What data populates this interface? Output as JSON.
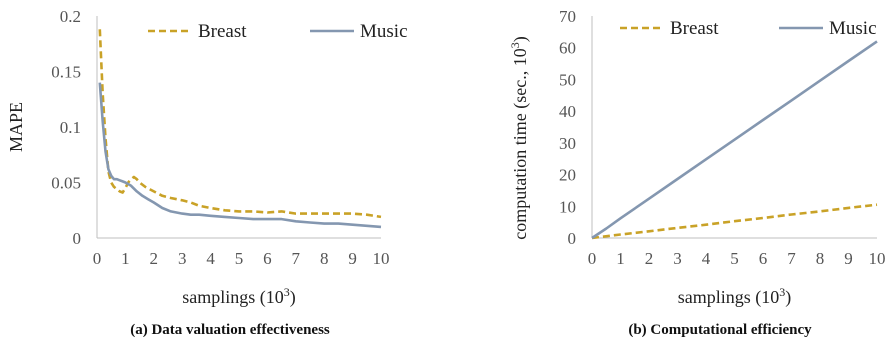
{
  "captions": {
    "left": "(a) Data valuation effectiveness",
    "right": "(b) Computational efficiency"
  },
  "colors": {
    "breast": "#C9A227",
    "music": "#8497B0"
  },
  "chart_data": [
    {
      "type": "line",
      "ylabel": "MAPE",
      "xlabel": "samplings (10",
      "xlabel_sup": "3",
      "xlabel_tail": ")",
      "xlim": [
        0,
        10
      ],
      "ylim": [
        0,
        0.2
      ],
      "xticks": [
        "0",
        "1",
        "2",
        "3",
        "4",
        "5",
        "6",
        "7",
        "8",
        "9",
        "10"
      ],
      "yticks": [
        "0",
        "0.05",
        "0.1",
        "0.15",
        "0.2"
      ],
      "legend": "top",
      "series": [
        {
          "name": "Breast",
          "style": "dashed",
          "x": [
            0.1,
            0.2,
            0.3,
            0.4,
            0.5,
            0.6,
            0.7,
            0.8,
            0.9,
            1.0,
            1.1,
            1.2,
            1.3,
            1.4,
            1.5,
            1.7,
            2.0,
            2.3,
            2.6,
            3.0,
            3.3,
            3.6,
            4.0,
            4.5,
            5.0,
            5.5,
            6.0,
            6.5,
            7.0,
            7.5,
            8.0,
            8.5,
            9.0,
            9.5,
            10.0
          ],
          "values": [
            0.188,
            0.13,
            0.09,
            0.06,
            0.05,
            0.046,
            0.044,
            0.042,
            0.041,
            0.045,
            0.05,
            0.053,
            0.055,
            0.053,
            0.05,
            0.046,
            0.042,
            0.038,
            0.036,
            0.034,
            0.032,
            0.029,
            0.027,
            0.025,
            0.024,
            0.024,
            0.023,
            0.024,
            0.022,
            0.022,
            0.022,
            0.022,
            0.022,
            0.021,
            0.019
          ]
        },
        {
          "name": "Music",
          "style": "solid",
          "x": [
            0.1,
            0.2,
            0.3,
            0.4,
            0.5,
            0.6,
            0.7,
            0.8,
            0.9,
            1.0,
            1.2,
            1.4,
            1.6,
            1.8,
            2.0,
            2.3,
            2.6,
            3.0,
            3.3,
            3.6,
            4.0,
            4.5,
            5.0,
            5.5,
            6.0,
            6.5,
            7.0,
            7.5,
            8.0,
            8.5,
            9.0,
            9.5,
            10.0
          ],
          "values": [
            0.14,
            0.105,
            0.078,
            0.062,
            0.056,
            0.053,
            0.053,
            0.052,
            0.051,
            0.05,
            0.047,
            0.042,
            0.038,
            0.035,
            0.032,
            0.027,
            0.024,
            0.022,
            0.021,
            0.021,
            0.02,
            0.019,
            0.018,
            0.017,
            0.017,
            0.017,
            0.015,
            0.014,
            0.013,
            0.013,
            0.012,
            0.011,
            0.01
          ]
        }
      ]
    },
    {
      "type": "line",
      "ylabel": "computation time (sec., 10",
      "ylabel_sup": "3",
      "ylabel_tail": ")",
      "xlabel": "samplings (10",
      "xlabel_sup": "3",
      "xlabel_tail": ")",
      "xlim": [
        0,
        10
      ],
      "ylim": [
        0,
        70
      ],
      "xticks": [
        "0",
        "1",
        "2",
        "3",
        "4",
        "5",
        "6",
        "7",
        "8",
        "9",
        "10"
      ],
      "yticks": [
        "0",
        "10",
        "20",
        "30",
        "40",
        "50",
        "60",
        "70"
      ],
      "legend": "top",
      "series": [
        {
          "name": "Breast",
          "style": "dashed",
          "x": [
            0,
            1,
            2,
            3,
            4,
            5,
            6,
            7,
            8,
            9,
            10
          ],
          "values": [
            0,
            1.1,
            2.1,
            3.2,
            4.2,
            5.3,
            6.3,
            7.4,
            8.4,
            9.5,
            10.5
          ]
        },
        {
          "name": "Music",
          "style": "solid",
          "x": [
            0,
            0.5,
            1,
            2,
            3,
            4,
            5,
            6,
            7,
            8,
            9,
            10
          ],
          "values": [
            0,
            3.0,
            6.2,
            12.4,
            18.6,
            24.8,
            31.0,
            37.2,
            43.4,
            49.6,
            55.8,
            62.0
          ]
        }
      ]
    }
  ]
}
